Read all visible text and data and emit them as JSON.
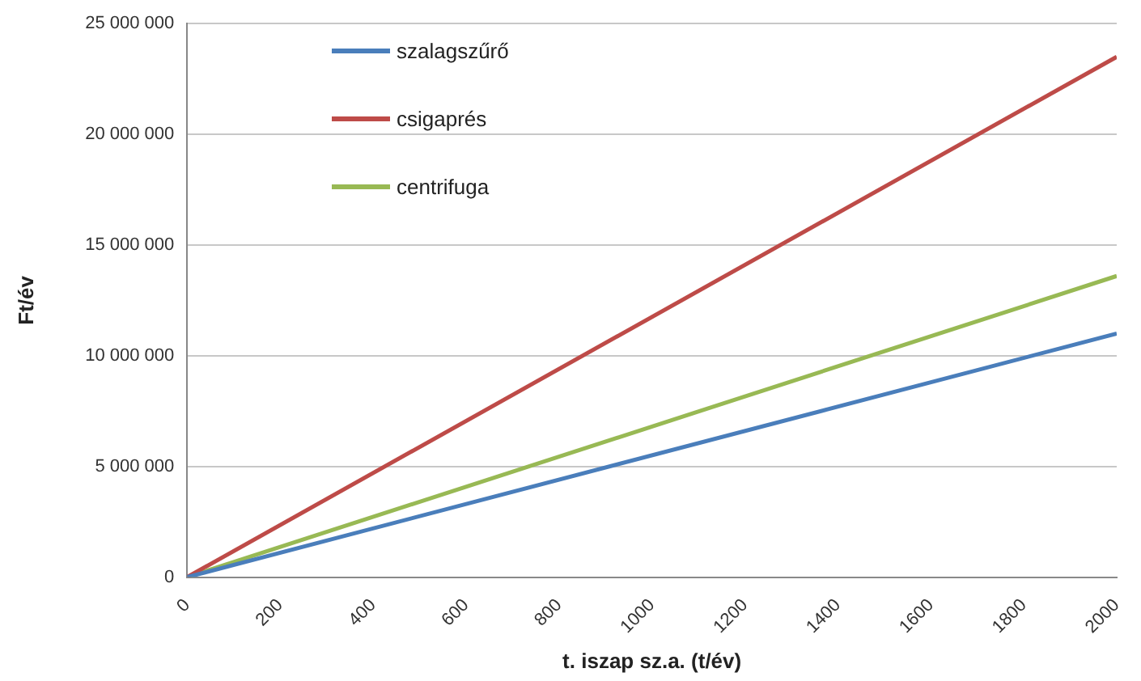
{
  "chart_data": {
    "type": "line",
    "xlabel": "t. iszap sz.a. (t/év)",
    "ylabel": "Ft/év",
    "x": [
      0,
      2000
    ],
    "series": [
      {
        "name": "szalagszűrő",
        "color": "#4a7ebb",
        "values": [
          0,
          11000000
        ]
      },
      {
        "name": "csigaprés",
        "color": "#be4b48",
        "values": [
          0,
          23500000
        ]
      },
      {
        "name": "centrifuga",
        "color": "#98b954",
        "values": [
          0,
          13600000
        ]
      }
    ],
    "xlim": [
      0,
      2000
    ],
    "xticks": [
      0,
      200,
      400,
      600,
      800,
      1000,
      1200,
      1400,
      1600,
      1800,
      2000
    ],
    "ylim": [
      0,
      25000000
    ],
    "yticks": [
      {
        "value": 0,
        "label": "0"
      },
      {
        "value": 5000000,
        "label": "5 000 000"
      },
      {
        "value": 10000000,
        "label": "10 000 000"
      },
      {
        "value": 15000000,
        "label": "15 000 000"
      },
      {
        "value": 20000000,
        "label": "20 000 000"
      },
      {
        "value": 25000000,
        "label": "25 000 000"
      }
    ],
    "grid": "y",
    "legend": "top left",
    "marker": "none",
    "line_style": "solid"
  }
}
